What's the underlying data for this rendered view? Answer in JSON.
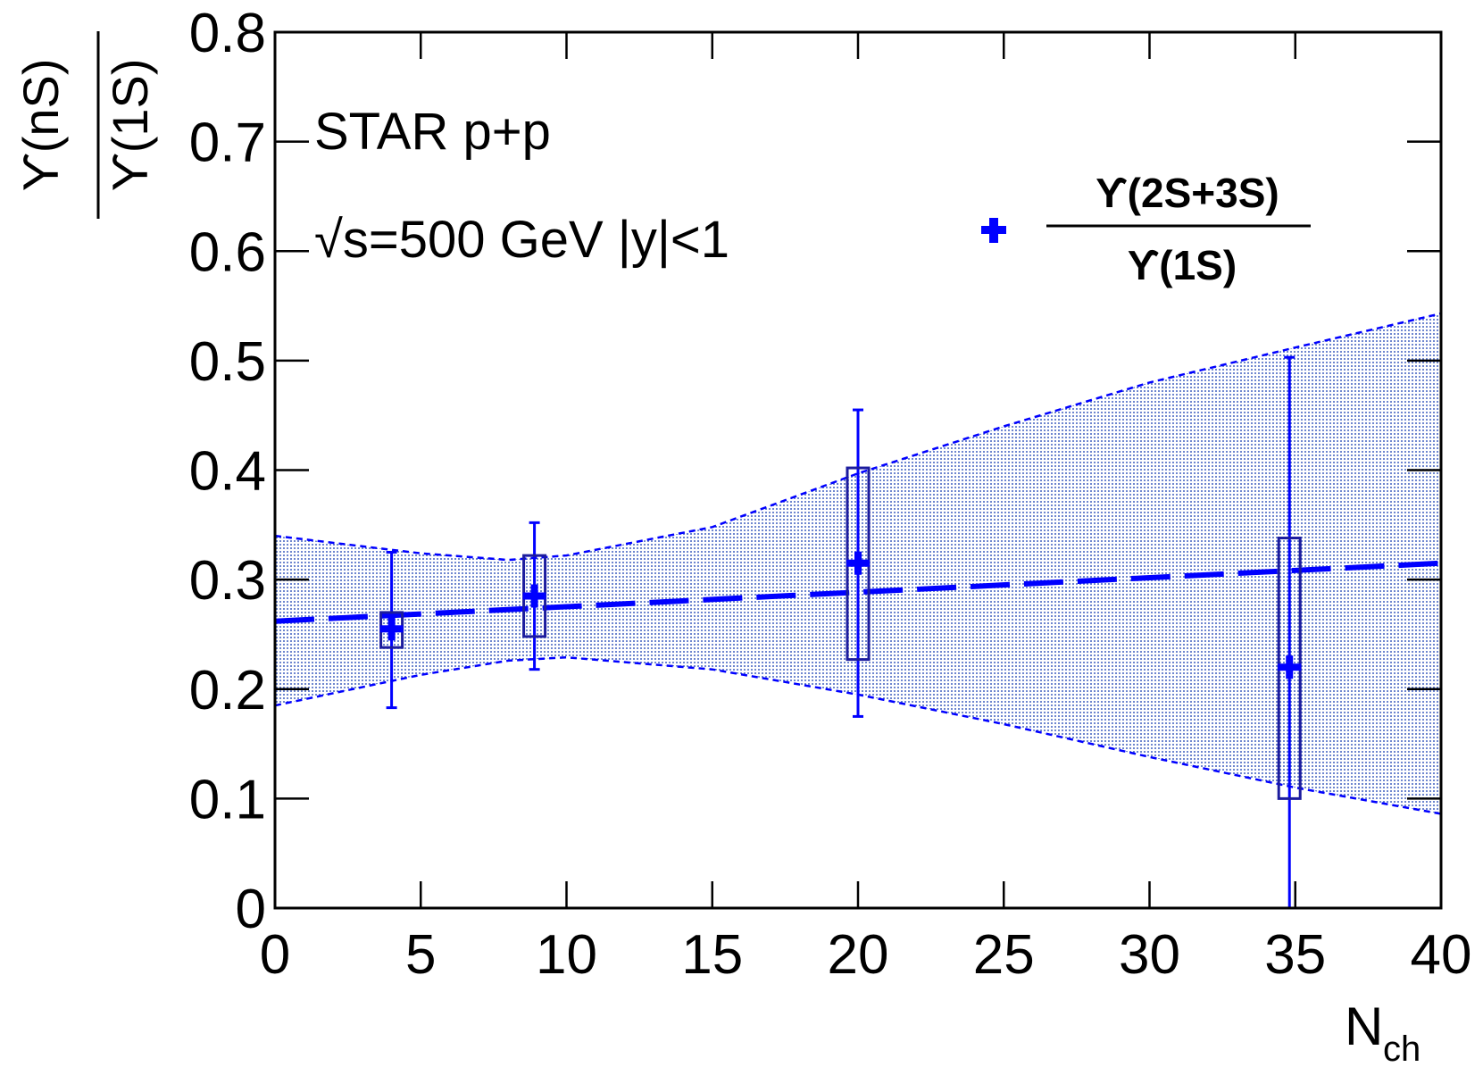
{
  "chart_data": {
    "type": "scatter",
    "annotations": {
      "line1": "STAR p+p",
      "line2_prefix": "√",
      "line2_rest": "s=500 GeV |y|<1"
    },
    "ylabel": {
      "numerator": "ϒ(nS)",
      "denominator": "ϒ(1S)"
    },
    "xlabel": {
      "main": "N",
      "sub": "ch"
    },
    "legend": {
      "position": "top-right",
      "numerator": "ϒ(2S+3S)",
      "denominator": "ϒ(1S)"
    },
    "xlim": [
      0,
      40
    ],
    "ylim": [
      0,
      0.8
    ],
    "x_ticks": [
      "0",
      "5",
      "10",
      "15",
      "20",
      "25",
      "30",
      "35",
      "40"
    ],
    "y_ticks": [
      "0",
      "0.1",
      "0.2",
      "0.3",
      "0.4",
      "0.5",
      "0.6",
      "0.7",
      "0.8"
    ],
    "series": [
      {
        "name": "ϒ(2S+3S)/ϒ(1S)",
        "color": "#0000ff",
        "points": [
          {
            "x": 4.0,
            "y": 0.255,
            "stat_low": 0.183,
            "stat_high": 0.325,
            "sys_low": 0.238,
            "sys_high": 0.27
          },
          {
            "x": 8.9,
            "y": 0.285,
            "stat_low": 0.218,
            "stat_high": 0.352,
            "sys_low": 0.248,
            "sys_high": 0.322
          },
          {
            "x": 20.0,
            "y": 0.315,
            "stat_low": 0.175,
            "stat_high": 0.455,
            "sys_low": 0.227,
            "sys_high": 0.402
          },
          {
            "x": 34.8,
            "y": 0.22,
            "stat_low": 0.0,
            "stat_high": 0.503,
            "sys_low": 0.1,
            "sys_high": 0.338
          }
        ]
      }
    ],
    "fit": {
      "name": "linear fit",
      "color": "#0000ff",
      "line": [
        [
          0,
          0.262
        ],
        [
          40,
          0.315
        ]
      ],
      "band_upper": [
        [
          0,
          0.34
        ],
        [
          5,
          0.324
        ],
        [
          8,
          0.318
        ],
        [
          10,
          0.322
        ],
        [
          15,
          0.348
        ],
        [
          20,
          0.397
        ],
        [
          25,
          0.44
        ],
        [
          30,
          0.48
        ],
        [
          35,
          0.512
        ],
        [
          40,
          0.543
        ]
      ],
      "band_lower": [
        [
          0,
          0.185
        ],
        [
          5,
          0.213
        ],
        [
          8,
          0.226
        ],
        [
          10,
          0.229
        ],
        [
          15,
          0.218
        ],
        [
          20,
          0.195
        ],
        [
          25,
          0.168
        ],
        [
          30,
          0.138
        ],
        [
          35,
          0.11
        ],
        [
          40,
          0.086
        ]
      ]
    }
  },
  "colors": {
    "data": "#0000ff",
    "sys_box": "#1c1c9e",
    "band_fill": "#5b76c9"
  }
}
